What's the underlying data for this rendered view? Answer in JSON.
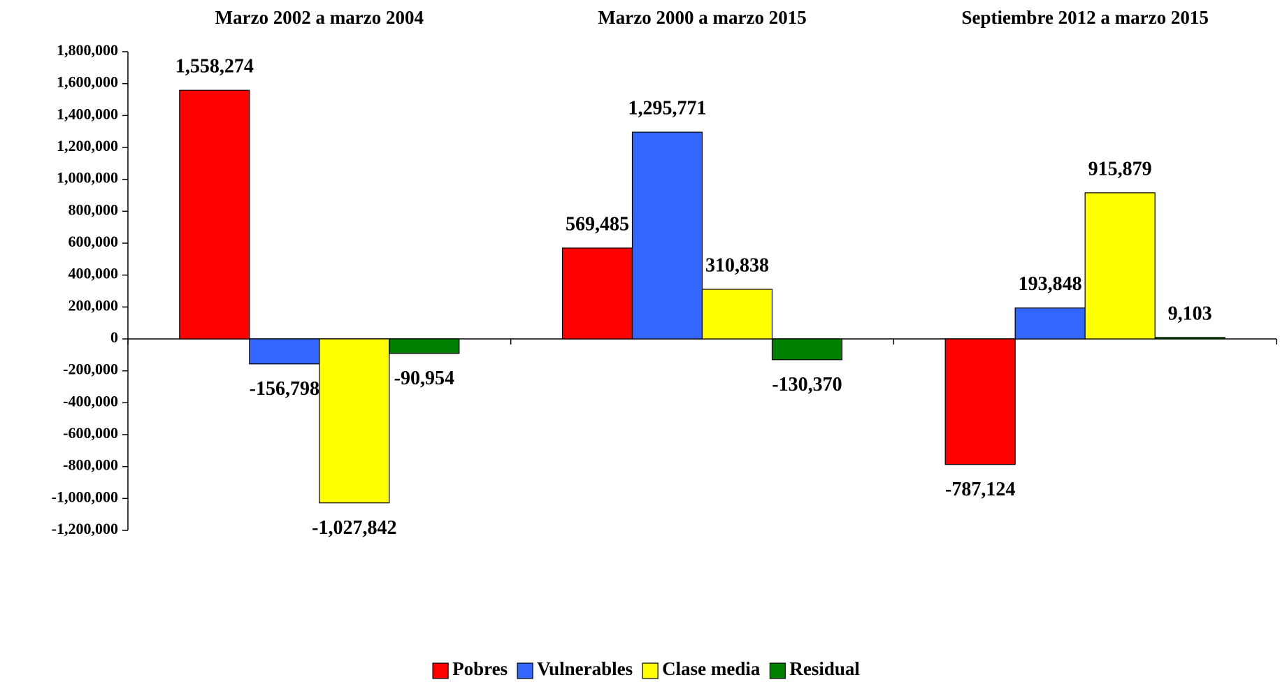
{
  "chart_data": {
    "type": "bar",
    "categories": [
      "Marzo 2002 a marzo 2004",
      "Marzo 2000 a marzo 2015",
      "Septiembre 2012 a marzo 2015"
    ],
    "series": [
      {
        "name": "Pobres",
        "color": "#ff0000",
        "values": [
          1558274,
          569485,
          -787124
        ],
        "value_labels": [
          "1,558,274",
          "569,485",
          "-787,124"
        ]
      },
      {
        "name": "Vulnerables",
        "color": "#3366ff",
        "values": [
          -156798,
          1295771,
          193848
        ],
        "value_labels": [
          "-156,798",
          "1,295,771",
          "193,848"
        ]
      },
      {
        "name": "Clase media",
        "color": "#ffff00",
        "values": [
          -1027842,
          310838,
          915879
        ],
        "value_labels": [
          "-1,027,842",
          "310,838",
          "915,879"
        ]
      },
      {
        "name": "Residual",
        "color": "#008000",
        "values": [
          -90954,
          -130370,
          9103
        ],
        "value_labels": [
          "-90,954",
          "-130,370",
          "9,103"
        ]
      }
    ],
    "ylim": [
      -1200000,
      1800000
    ],
    "yticks": [
      {
        "value": -1200000,
        "label": "-1,200,000"
      },
      {
        "value": -1000000,
        "label": "-1,000,000"
      },
      {
        "value": -800000,
        "label": "-800,000"
      },
      {
        "value": -600000,
        "label": "-600,000"
      },
      {
        "value": -400000,
        "label": "-400,000"
      },
      {
        "value": -200000,
        "label": "-200,000"
      },
      0,
      {
        "value": 200000,
        "label": "200,000"
      },
      {
        "value": 400000,
        "label": "400,000"
      },
      {
        "value": 600000,
        "label": "600,000"
      },
      {
        "value": 800000,
        "label": "800,000"
      },
      {
        "value": 1000000,
        "label": "1,000,000"
      },
      {
        "value": 1200000,
        "label": "1,200,000"
      },
      {
        "value": 1400000,
        "label": "1,400,000"
      },
      {
        "value": 1600000,
        "label": "1,600,000"
      },
      {
        "value": 1800000,
        "label": "1,800,000"
      }
    ],
    "legend": "bottom",
    "grid": false
  }
}
